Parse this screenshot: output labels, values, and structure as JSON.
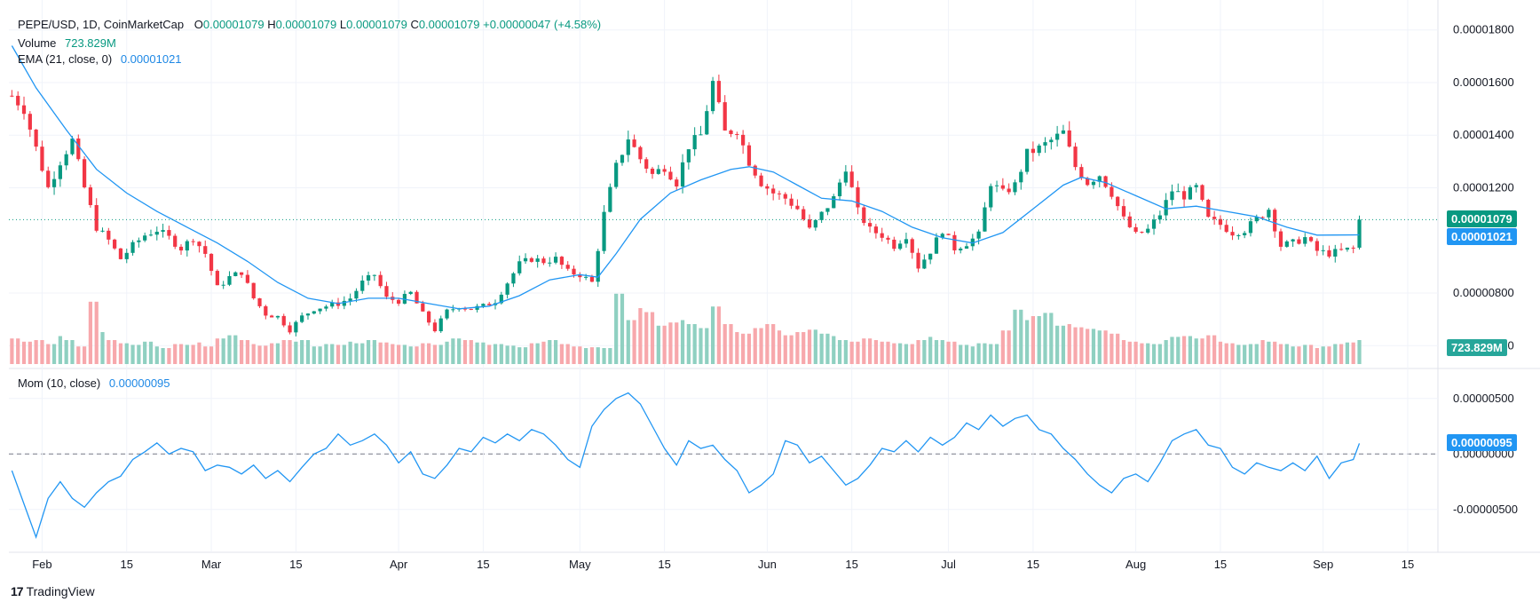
{
  "header": {
    "symbol": "PEPE/USD, 1D, CoinMarketCap",
    "o_label": "O",
    "o": "0.00001079",
    "h_label": "H",
    "h": "0.00001079",
    "l_label": "L",
    "l": "0.00001079",
    "c_label": "C",
    "c": "0.00001079",
    "change": "+0.00000047 (+4.58%)",
    "volume_label": "Volume",
    "volume": "723.829M",
    "ema_label": "EMA (21, close, 0)",
    "ema": "0.00001021"
  },
  "momentum_header": {
    "label": "Mom (10, close)",
    "value": "0.00000095"
  },
  "brand": {
    "name": "TradingView"
  },
  "colors": {
    "up": "#089981",
    "down": "#f23645",
    "ema": "#2196f3",
    "vol_up": "#8fd0c1",
    "vol_down": "#f7a8ac",
    "grid": "#f0f3fa"
  },
  "chart_data": [
    {
      "type": "candlestick",
      "price_axis": {
        "ylim": [
          5.3e-06,
          1.88e-05
        ],
        "ticks": [
          "0.00001800",
          "0.00001600",
          "0.00001400",
          "0.00001200",
          "0.00000800",
          "0.00000600"
        ],
        "tick_values": [
          1.8e-05,
          1.6e-05,
          1.4e-05,
          1.2e-05,
          8e-06,
          6e-06
        ]
      },
      "time_axis": {
        "ticks": [
          "Feb",
          "15",
          "Mar",
          "15",
          "Apr",
          "15",
          "May",
          "15",
          "Jun",
          "15",
          "Jul",
          "15",
          "Aug",
          "15",
          "Sep",
          "15"
        ],
        "tick_days": [
          31,
          45,
          59,
          73,
          90,
          104,
          120,
          134,
          151,
          165,
          181,
          195,
          212,
          226,
          243,
          257
        ]
      },
      "day_range": [
        25.5,
        262
      ],
      "last_price": {
        "label": "0.00001079",
        "value": 1.079e-05
      },
      "ema_last": {
        "label": "0.00001021",
        "value": 1.021e-05
      },
      "close_path": [
        [
          26,
          1.55e-05
        ],
        [
          28,
          1.5e-05
        ],
        [
          30,
          1.35e-05
        ],
        [
          32,
          1.2e-05
        ],
        [
          34,
          1.3e-05
        ],
        [
          36,
          1.38e-05
        ],
        [
          38,
          1.2e-05
        ],
        [
          40,
          1.05e-05
        ],
        [
          42,
          1e-05
        ],
        [
          44,
          9.3e-06
        ],
        [
          46,
          9.8e-06
        ],
        [
          48,
          1.02e-05
        ],
        [
          50,
          1.04e-05
        ],
        [
          52,
          1.01e-05
        ],
        [
          54,
          9.7e-06
        ],
        [
          56,
          1.01e-05
        ],
        [
          58,
          9.5e-06
        ],
        [
          60,
          8.2e-06
        ],
        [
          62,
          8.6e-06
        ],
        [
          64,
          8.8e-06
        ],
        [
          66,
          7.8e-06
        ],
        [
          68,
          7.2e-06
        ],
        [
          70,
          7.1e-06
        ],
        [
          72,
          6.6e-06
        ],
        [
          74,
          7.1e-06
        ],
        [
          76,
          7.4e-06
        ],
        [
          78,
          7.5e-06
        ],
        [
          80,
          7.6e-06
        ],
        [
          82,
          7.8e-06
        ],
        [
          84,
          8.4e-06
        ],
        [
          86,
          8.7e-06
        ],
        [
          88,
          7.8e-06
        ],
        [
          90,
          7.7e-06
        ],
        [
          92,
          8e-06
        ],
        [
          94,
          7.2e-06
        ],
        [
          96,
          6.6e-06
        ],
        [
          98,
          7.3e-06
        ],
        [
          100,
          7.5e-06
        ],
        [
          102,
          7.4e-06
        ],
        [
          104,
          7.5e-06
        ],
        [
          106,
          7.7e-06
        ],
        [
          108,
          8.4e-06
        ],
        [
          110,
          9.1e-06
        ],
        [
          112,
          9.3e-06
        ],
        [
          114,
          9.2e-06
        ],
        [
          116,
          9.3e-06
        ],
        [
          118,
          8.8e-06
        ],
        [
          120,
          8.7e-06
        ],
        [
          122,
          8.4e-06
        ],
        [
          124,
          1.1e-05
        ],
        [
          126,
          1.28e-05
        ],
        [
          128,
          1.39e-05
        ],
        [
          130,
          1.31e-05
        ],
        [
          132,
          1.25e-05
        ],
        [
          134,
          1.28e-05
        ],
        [
          136,
          1.22e-05
        ],
        [
          138,
          1.36e-05
        ],
        [
          140,
          1.4e-05
        ],
        [
          142,
          1.6e-05
        ],
        [
          144,
          1.41e-05
        ],
        [
          146,
          1.42e-05
        ],
        [
          148,
          1.3e-05
        ],
        [
          150,
          1.22e-05
        ],
        [
          152,
          1.18e-05
        ],
        [
          154,
          1.16e-05
        ],
        [
          156,
          1.12e-05
        ],
        [
          158,
          1.04e-05
        ],
        [
          160,
          1.1e-05
        ],
        [
          162,
          1.16e-05
        ],
        [
          164,
          1.28e-05
        ],
        [
          166,
          1.11e-05
        ],
        [
          168,
          1.04e-05
        ],
        [
          170,
          1.02e-05
        ],
        [
          172,
          9.8e-06
        ],
        [
          174,
          1.02e-05
        ],
        [
          176,
          9e-06
        ],
        [
          178,
          9.6e-06
        ],
        [
          180,
          1.04e-05
        ],
        [
          182,
          9.7e-06
        ],
        [
          184,
          9.9e-06
        ],
        [
          186,
          1.02e-05
        ],
        [
          188,
          1.22e-05
        ],
        [
          190,
          1.18e-05
        ],
        [
          192,
          1.21e-05
        ],
        [
          194,
          1.33e-05
        ],
        [
          196,
          1.35e-05
        ],
        [
          198,
          1.38e-05
        ],
        [
          200,
          1.41e-05
        ],
        [
          202,
          1.28e-05
        ],
        [
          204,
          1.22e-05
        ],
        [
          206,
          1.25e-05
        ],
        [
          208,
          1.18e-05
        ],
        [
          210,
          1.08e-05
        ],
        [
          212,
          1.02e-05
        ],
        [
          214,
          1.04e-05
        ],
        [
          216,
          1.1e-05
        ],
        [
          218,
          1.19e-05
        ],
        [
          220,
          1.17e-05
        ],
        [
          222,
          1.2e-05
        ],
        [
          224,
          1.08e-05
        ],
        [
          226,
          1.06e-05
        ],
        [
          228,
          1.03e-05
        ],
        [
          230,
          1.04e-05
        ],
        [
          232,
          1.08e-05
        ],
        [
          234,
          1.12e-05
        ],
        [
          236,
          9.8e-06
        ],
        [
          238,
          9.9e-06
        ],
        [
          240,
          1.01e-05
        ],
        [
          242,
          9.6e-06
        ],
        [
          244,
          9.5e-06
        ],
        [
          246,
          9.6e-06
        ],
        [
          248,
          9.7e-06
        ],
        [
          249,
          1.079e-05
        ]
      ],
      "ema_path": [
        [
          26,
          1.74e-05
        ],
        [
          30,
          1.58e-05
        ],
        [
          35,
          1.42e-05
        ],
        [
          40,
          1.27e-05
        ],
        [
          45,
          1.18e-05
        ],
        [
          50,
          1.11e-05
        ],
        [
          55,
          1.05e-05
        ],
        [
          60,
          9.9e-06
        ],
        [
          65,
          9.2e-06
        ],
        [
          70,
          8.4e-06
        ],
        [
          75,
          7.8e-06
        ],
        [
          80,
          7.6e-06
        ],
        [
          85,
          7.8e-06
        ],
        [
          90,
          7.8e-06
        ],
        [
          95,
          7.6e-06
        ],
        [
          100,
          7.4e-06
        ],
        [
          105,
          7.5e-06
        ],
        [
          110,
          7.9e-06
        ],
        [
          115,
          8.5e-06
        ],
        [
          120,
          8.7e-06
        ],
        [
          123,
          8.6e-06
        ],
        [
          126,
          9.5e-06
        ],
        [
          130,
          1.08e-05
        ],
        [
          135,
          1.18e-05
        ],
        [
          140,
          1.23e-05
        ],
        [
          145,
          1.27e-05
        ],
        [
          148,
          1.28e-05
        ],
        [
          152,
          1.26e-05
        ],
        [
          156,
          1.21e-05
        ],
        [
          160,
          1.16e-05
        ],
        [
          165,
          1.15e-05
        ],
        [
          170,
          1.11e-05
        ],
        [
          175,
          1.05e-05
        ],
        [
          180,
          1.01e-05
        ],
        [
          185,
          9.9e-06
        ],
        [
          190,
          1.03e-05
        ],
        [
          195,
          1.12e-05
        ],
        [
          200,
          1.21e-05
        ],
        [
          203,
          1.24e-05
        ],
        [
          207,
          1.22e-05
        ],
        [
          212,
          1.17e-05
        ],
        [
          217,
          1.12e-05
        ],
        [
          222,
          1.13e-05
        ],
        [
          227,
          1.11e-05
        ],
        [
          232,
          1.09e-05
        ],
        [
          237,
          1.05e-05
        ],
        [
          242,
          1.02e-05
        ],
        [
          249,
          1.021e-05
        ]
      ]
    },
    {
      "type": "bar",
      "name": "Volume",
      "last_label": "723.829M",
      "relative_values": [
        0.32,
        0.28,
        0.3,
        0.25,
        0.35,
        0.3,
        0.22,
        0.78,
        0.4,
        0.3,
        0.26,
        0.24,
        0.28,
        0.22,
        0.2,
        0.25,
        0.24,
        0.27,
        0.22,
        0.32,
        0.36,
        0.3,
        0.25,
        0.23,
        0.26,
        0.3,
        0.28,
        0.3,
        0.22,
        0.25,
        0.24,
        0.28,
        0.26,
        0.3,
        0.27,
        0.25,
        0.24,
        0.22,
        0.26,
        0.24,
        0.28,
        0.32,
        0.3,
        0.27,
        0.24,
        0.25,
        0.23,
        0.21,
        0.26,
        0.28,
        0.3,
        0.25,
        0.22,
        0.2,
        0.21,
        0.2,
        0.88,
        0.55,
        0.7,
        0.65,
        0.48,
        0.52,
        0.55,
        0.5,
        0.45,
        0.72,
        0.5,
        0.4,
        0.38,
        0.45,
        0.5,
        0.42,
        0.36,
        0.4,
        0.43,
        0.38,
        0.35,
        0.3,
        0.28,
        0.32,
        0.3,
        0.28,
        0.26,
        0.25,
        0.3,
        0.34,
        0.3,
        0.28,
        0.24,
        0.22,
        0.26,
        0.25,
        0.42,
        0.68,
        0.55,
        0.6,
        0.64,
        0.48,
        0.5,
        0.46,
        0.44,
        0.42,
        0.38,
        0.3,
        0.28,
        0.26,
        0.25,
        0.3,
        0.34,
        0.35,
        0.32,
        0.36,
        0.28,
        0.26,
        0.24,
        0.25,
        0.3,
        0.28,
        0.25,
        0.22,
        0.24,
        0.2,
        0.22,
        0.25,
        0.27,
        0.3
      ]
    },
    {
      "type": "line",
      "name": "Mom (10, close)",
      "ylim": [
        -8.3e-06,
        6.5e-06
      ],
      "ticks": [
        "0.00000500",
        "0.00000000",
        "-0.00000500"
      ],
      "tick_values": [
        5e-06,
        0,
        -5e-06
      ],
      "last": {
        "label": "0.00000095",
        "value": 9.5e-07
      },
      "path": [
        [
          26,
          -1.5e-06
        ],
        [
          28,
          -4.5e-06
        ],
        [
          30,
          -7.5e-06
        ],
        [
          32,
          -4e-06
        ],
        [
          34,
          -2.5e-06
        ],
        [
          36,
          -4e-06
        ],
        [
          38,
          -4.8e-06
        ],
        [
          40,
          -3.5e-06
        ],
        [
          42,
          -2.5e-06
        ],
        [
          44,
          -2e-06
        ],
        [
          46,
          -5e-07
        ],
        [
          48,
          2e-07
        ],
        [
          50,
          1e-06
        ],
        [
          52,
          0
        ],
        [
          54,
          5e-07
        ],
        [
          56,
          2e-07
        ],
        [
          58,
          -1.5e-06
        ],
        [
          60,
          -1e-06
        ],
        [
          62,
          -1.2e-06
        ],
        [
          64,
          -1.8e-06
        ],
        [
          66,
          -1e-06
        ],
        [
          68,
          -2.2e-06
        ],
        [
          70,
          -1.5e-06
        ],
        [
          72,
          -2.5e-06
        ],
        [
          74,
          -1.2e-06
        ],
        [
          76,
          0
        ],
        [
          78,
          5e-07
        ],
        [
          80,
          1.8e-06
        ],
        [
          82,
          8e-07
        ],
        [
          84,
          1.2e-06
        ],
        [
          86,
          1.8e-06
        ],
        [
          88,
          8e-07
        ],
        [
          90,
          -8e-07
        ],
        [
          92,
          2e-07
        ],
        [
          94,
          -1.8e-06
        ],
        [
          96,
          -2.2e-06
        ],
        [
          98,
          -1e-06
        ],
        [
          100,
          5e-07
        ],
        [
          102,
          2e-07
        ],
        [
          104,
          1.5e-06
        ],
        [
          106,
          1e-06
        ],
        [
          108,
          1.8e-06
        ],
        [
          110,
          1.2e-06
        ],
        [
          112,
          2.2e-06
        ],
        [
          114,
          1.8e-06
        ],
        [
          116,
          8e-07
        ],
        [
          118,
          -5e-07
        ],
        [
          120,
          -1.2e-06
        ],
        [
          122,
          2.5e-06
        ],
        [
          124,
          4e-06
        ],
        [
          126,
          5e-06
        ],
        [
          128,
          5.5e-06
        ],
        [
          130,
          4.5e-06
        ],
        [
          132,
          2.5e-06
        ],
        [
          134,
          5e-07
        ],
        [
          136,
          -1e-06
        ],
        [
          138,
          1.2e-06
        ],
        [
          140,
          5e-07
        ],
        [
          142,
          8e-07
        ],
        [
          144,
          -5e-07
        ],
        [
          146,
          -1.5e-06
        ],
        [
          148,
          -3.5e-06
        ],
        [
          150,
          -2.8e-06
        ],
        [
          152,
          -1.8e-06
        ],
        [
          154,
          1.2e-06
        ],
        [
          156,
          8e-07
        ],
        [
          158,
          -8e-07
        ],
        [
          160,
          -2e-07
        ],
        [
          162,
          -1.5e-06
        ],
        [
          164,
          -2.8e-06
        ],
        [
          166,
          -2.2e-06
        ],
        [
          168,
          -1e-06
        ],
        [
          170,
          5e-07
        ],
        [
          172,
          2e-07
        ],
        [
          174,
          1.2e-06
        ],
        [
          176,
          2e-07
        ],
        [
          178,
          1.5e-06
        ],
        [
          180,
          8e-07
        ],
        [
          182,
          1.5e-06
        ],
        [
          184,
          2.8e-06
        ],
        [
          186,
          2.2e-06
        ],
        [
          188,
          3.5e-06
        ],
        [
          190,
          2.5e-06
        ],
        [
          192,
          3.2e-06
        ],
        [
          194,
          3.5e-06
        ],
        [
          196,
          2.2e-06
        ],
        [
          198,
          1.8e-06
        ],
        [
          200,
          5e-07
        ],
        [
          202,
          -5e-07
        ],
        [
          204,
          -1.8e-06
        ],
        [
          206,
          -2.8e-06
        ],
        [
          208,
          -3.5e-06
        ],
        [
          210,
          -2.2e-06
        ],
        [
          212,
          -1.8e-06
        ],
        [
          214,
          -2.5e-06
        ],
        [
          216,
          -8e-07
        ],
        [
          218,
          1.2e-06
        ],
        [
          220,
          1.8e-06
        ],
        [
          222,
          2.2e-06
        ],
        [
          224,
          8e-07
        ],
        [
          226,
          5e-07
        ],
        [
          228,
          -1.2e-06
        ],
        [
          230,
          -1.8e-06
        ],
        [
          232,
          -8e-07
        ],
        [
          234,
          -1.2e-06
        ],
        [
          236,
          -1.5e-06
        ],
        [
          238,
          -8e-07
        ],
        [
          240,
          -1.5e-06
        ],
        [
          242,
          -2e-07
        ],
        [
          244,
          -2.2e-06
        ],
        [
          246,
          -8e-07
        ],
        [
          248,
          -5e-07
        ],
        [
          249,
          9.5e-07
        ]
      ]
    }
  ]
}
